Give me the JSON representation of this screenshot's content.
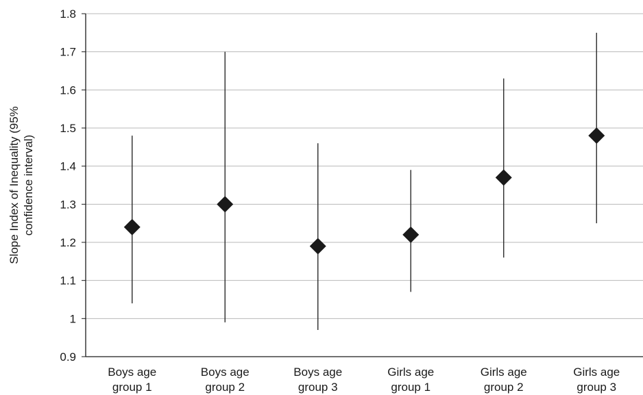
{
  "chart_data": {
    "type": "scatter",
    "subtype": "point-with-error-bars",
    "title": "",
    "xlabel": "",
    "ylabel_lines": [
      "Slope Index of Inequality (95%",
      "confidence interval)"
    ],
    "ylim": [
      0.9,
      1.8
    ],
    "yticks": [
      "0.9",
      "1",
      "1.1",
      "1.2",
      "1.3",
      "1.4",
      "1.5",
      "1.6",
      "1.7",
      "1.8"
    ],
    "grid": "horizontal",
    "marker": "diamond",
    "categories": [
      [
        "Boys age",
        "group 1"
      ],
      [
        "Boys age",
        "group 2"
      ],
      [
        "Boys age",
        "group 3"
      ],
      [
        "Girls age",
        "group 1"
      ],
      [
        "Girls age",
        "group 2"
      ],
      [
        "Girls age",
        "group 3"
      ]
    ],
    "values": [
      1.24,
      1.3,
      1.19,
      1.22,
      1.37,
      1.48
    ],
    "ci_lower": [
      1.04,
      0.99,
      0.97,
      1.07,
      1.16,
      1.25
    ],
    "ci_upper": [
      1.48,
      1.7,
      1.46,
      1.39,
      1.63,
      1.75
    ],
    "colors": {
      "marker": "#1a1a1a",
      "errorbar": "#2a2a2a",
      "grid": "#b8b8b8",
      "axis": "#1a1a1a"
    }
  }
}
